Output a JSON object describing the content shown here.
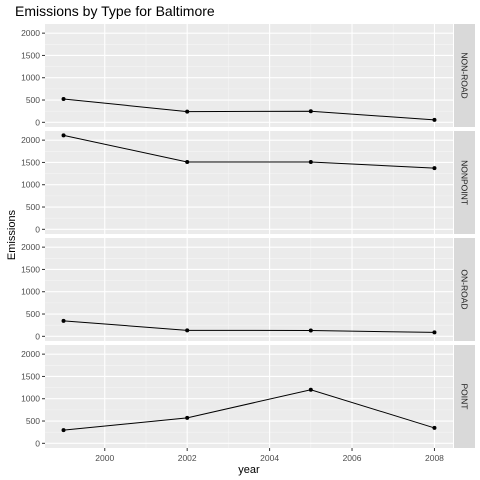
{
  "chart_data": {
    "type": "line",
    "title": "Emissions by Type for Baltimore",
    "xlabel": "year",
    "ylabel": "Emissions",
    "x": [
      1999,
      2002,
      2005,
      2008
    ],
    "xlim": [
      1998.55,
      2008.45
    ],
    "xticks": [
      2000,
      2002,
      2004,
      2006,
      2008
    ],
    "ylim": [
      -105,
      2205
    ],
    "yticks": [
      0,
      500,
      1000,
      1500,
      2000
    ],
    "grid": true,
    "facet": "rows",
    "panels": [
      {
        "name": "NON-ROAD",
        "values": [
          523,
          241,
          249,
          55
        ]
      },
      {
        "name": "NONPOINT",
        "values": [
          2107,
          1510,
          1510,
          1373
        ]
      },
      {
        "name": "ON-ROAD",
        "values": [
          347,
          134,
          131,
          88
        ]
      },
      {
        "name": "POINT",
        "values": [
          297,
          570,
          1202,
          345
        ]
      }
    ]
  }
}
